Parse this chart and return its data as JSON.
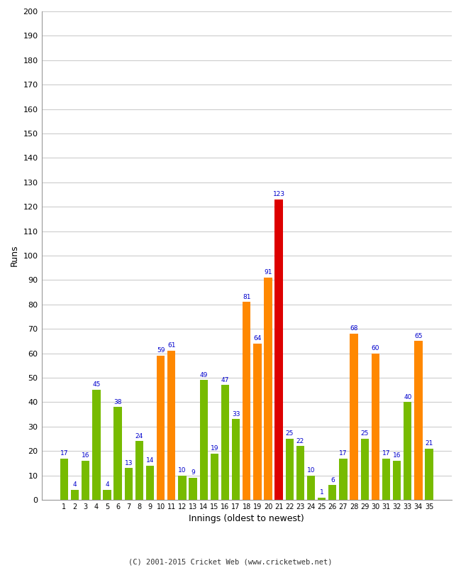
{
  "xlabel": "Innings (oldest to newest)",
  "ylabel": "Runs",
  "ylim": [
    0,
    200
  ],
  "yticks": [
    0,
    10,
    20,
    30,
    40,
    50,
    60,
    70,
    80,
    90,
    100,
    110,
    120,
    130,
    140,
    150,
    160,
    170,
    180,
    190,
    200
  ],
  "innings": [
    1,
    2,
    3,
    4,
    5,
    6,
    7,
    8,
    9,
    10,
    11,
    12,
    13,
    14,
    15,
    16,
    17,
    18,
    19,
    20,
    21,
    22,
    23,
    24,
    25,
    26,
    27,
    28,
    29,
    30,
    31,
    32,
    33,
    34,
    35
  ],
  "values": [
    17,
    4,
    16,
    45,
    4,
    38,
    13,
    24,
    14,
    59,
    61,
    10,
    9,
    49,
    19,
    47,
    33,
    81,
    64,
    91,
    123,
    25,
    22,
    10,
    1,
    6,
    17,
    68,
    25,
    60,
    17,
    16,
    40,
    65,
    21
  ],
  "colors": [
    "#77bb00",
    "#77bb00",
    "#77bb00",
    "#77bb00",
    "#77bb00",
    "#77bb00",
    "#77bb00",
    "#77bb00",
    "#77bb00",
    "#ff8800",
    "#ff8800",
    "#77bb00",
    "#77bb00",
    "#77bb00",
    "#77bb00",
    "#77bb00",
    "#77bb00",
    "#ff8800",
    "#ff8800",
    "#ff8800",
    "#dd0000",
    "#77bb00",
    "#77bb00",
    "#77bb00",
    "#77bb00",
    "#77bb00",
    "#77bb00",
    "#ff8800",
    "#77bb00",
    "#ff8800",
    "#77bb00",
    "#77bb00",
    "#77bb00",
    "#ff8800",
    "#77bb00"
  ],
  "label_color": "#0000cc",
  "background_color": "#ffffff",
  "grid_color": "#cccccc",
  "footer": "(C) 2001-2015 Cricket Web (www.cricketweb.net)",
  "bar_width": 0.75
}
